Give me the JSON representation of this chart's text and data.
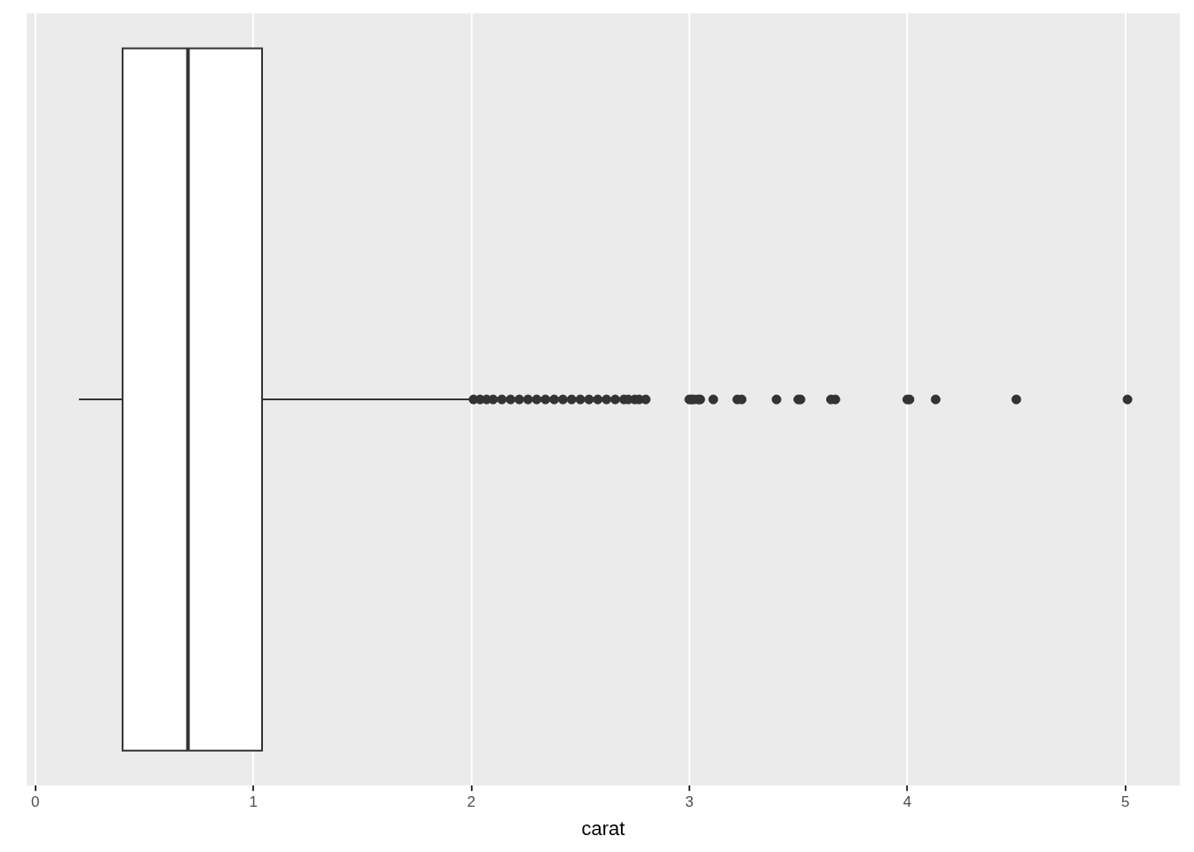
{
  "chart_data": {
    "type": "box",
    "orientation": "horizontal",
    "categories": [
      null
    ],
    "xlabel": "carat",
    "xlim": [
      -0.04,
      5.25
    ],
    "xticks": [
      0,
      1,
      2,
      3,
      4,
      5
    ],
    "tick_labels": "x",
    "grid": "x",
    "colors": [
      "#ffffff"
    ],
    "boxes": [
      {
        "low": 0.2,
        "q1": 0.4,
        "median": 0.7,
        "q3": 1.04,
        "high": 2.0,
        "outliers": [
          2.01,
          2.04,
          2.07,
          2.1,
          2.14,
          2.18,
          2.22,
          2.26,
          2.3,
          2.34,
          2.38,
          2.42,
          2.46,
          2.5,
          2.54,
          2.58,
          2.62,
          2.66,
          2.7,
          2.72,
          2.75,
          2.77,
          2.8,
          3.0,
          3.01,
          3.02,
          3.04,
          3.05,
          3.11,
          3.22,
          3.24,
          3.4,
          3.5,
          3.51,
          3.65,
          3.67,
          4.0,
          4.01,
          4.13,
          4.5,
          5.01
        ]
      }
    ]
  }
}
